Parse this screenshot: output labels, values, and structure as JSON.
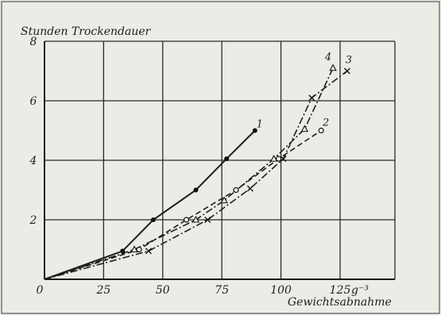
{
  "chart_data": {
    "type": "line",
    "ylabel": "Stunden Trockendauer",
    "xlabel": "Gewichtsabnahme",
    "x_unit": "g⁻³",
    "xlim": [
      0,
      125
    ],
    "ylim": [
      0,
      8
    ],
    "x_ticks": [
      "0",
      "25",
      "50",
      "75",
      "100",
      "125"
    ],
    "y_ticks": [
      "2",
      "4",
      "6",
      "8"
    ],
    "grid": true,
    "series": [
      {
        "name": "1",
        "marker": "dot",
        "line_style": "solid",
        "x": [
          0,
          33,
          46,
          64,
          77,
          89
        ],
        "y": [
          0,
          0.95,
          2.0,
          3.0,
          4.05,
          5.0
        ]
      },
      {
        "name": "2",
        "marker": "circle",
        "line_style": "dashed",
        "x": [
          0,
          40,
          60,
          81,
          99,
          117
        ],
        "y": [
          0,
          1.0,
          2.0,
          3.0,
          4.05,
          5.0
        ]
      },
      {
        "name": "3",
        "marker": "cross",
        "line_style": "dash-dot",
        "x": [
          0,
          44,
          69,
          87,
          101,
          113,
          128
        ],
        "y": [
          0,
          0.95,
          2.0,
          3.05,
          4.05,
          6.1,
          7.0
        ]
      },
      {
        "name": "4",
        "marker": "triangle",
        "line_style": "dash-dot",
        "x": [
          0,
          38,
          64,
          76,
          97,
          110,
          122
        ],
        "y": [
          0,
          1.0,
          2.0,
          2.65,
          4.05,
          5.05,
          7.1
        ]
      }
    ]
  }
}
